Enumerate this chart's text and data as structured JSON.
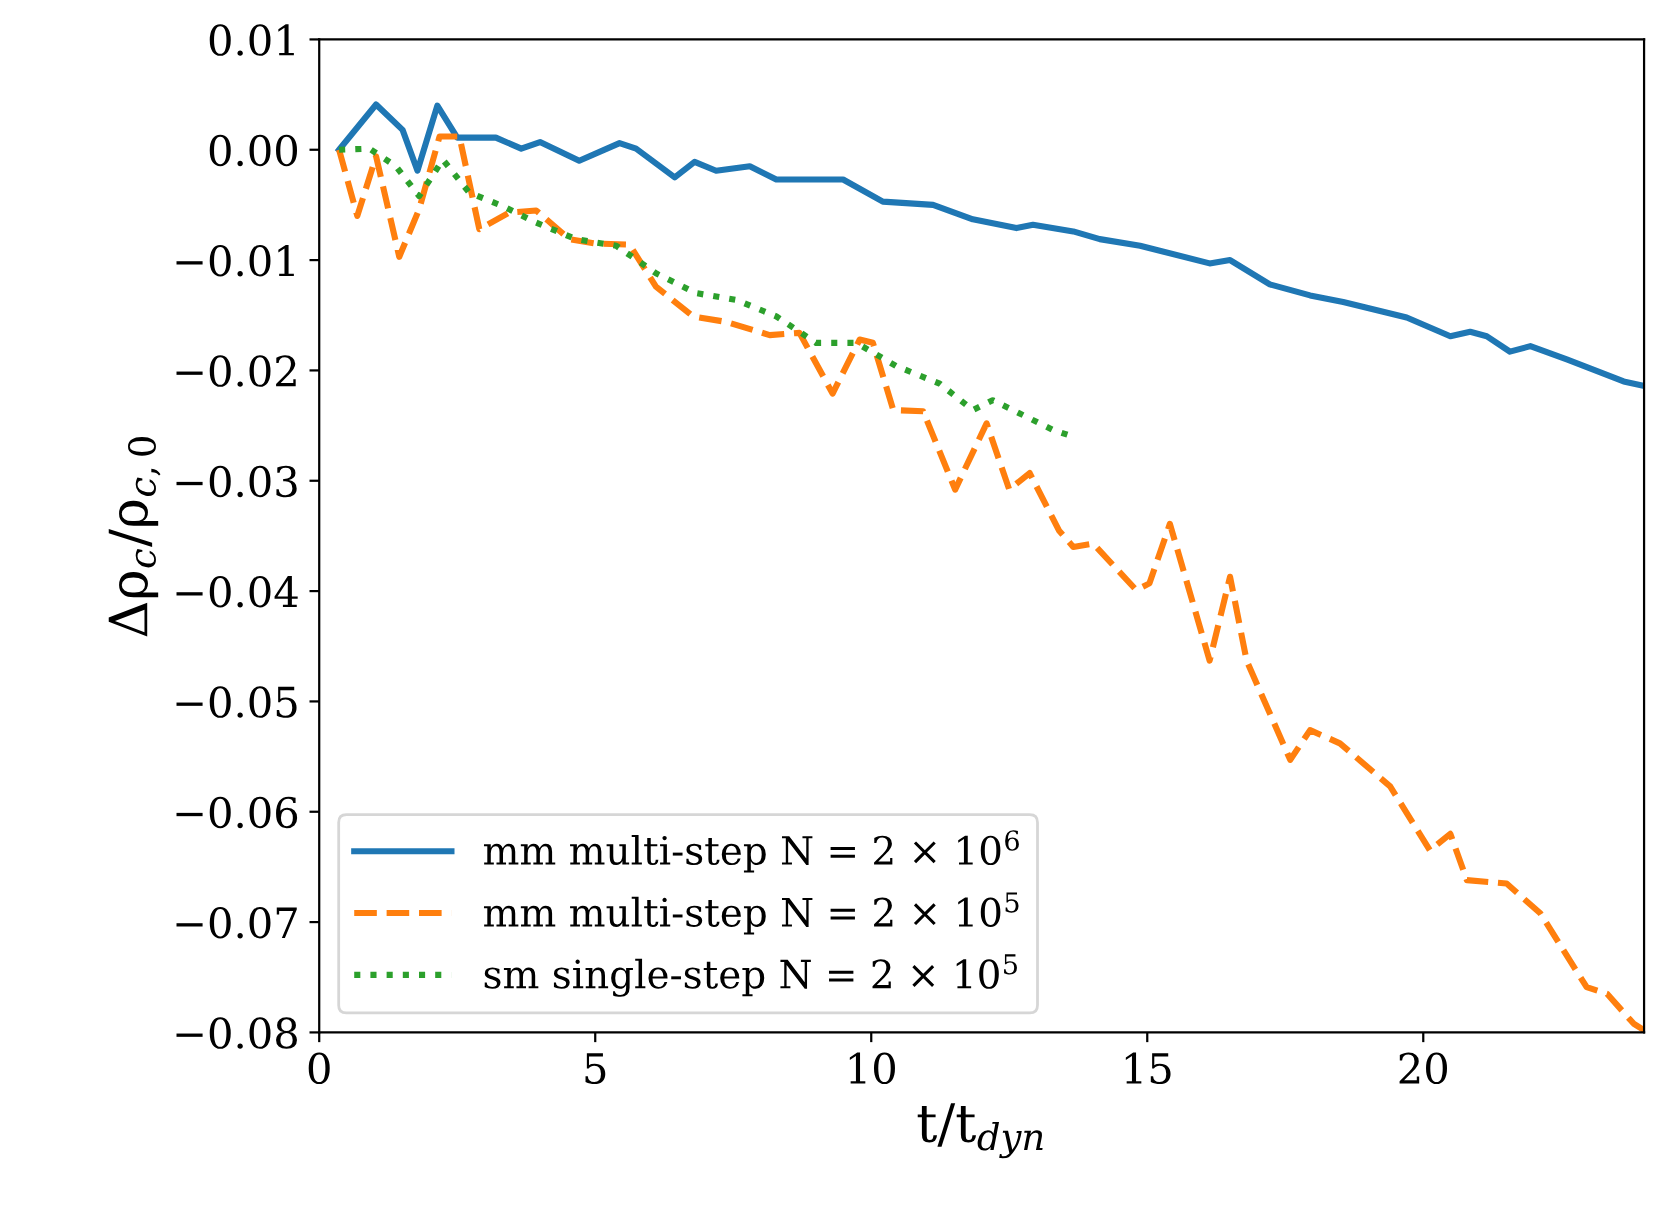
{
  "chart_data": {
    "type": "line",
    "xlabel": "t/t$_{dyn}$",
    "ylabel": "Δρ$_{c}$/ρ$_{c,0}$",
    "xlim": [
      0,
      24
    ],
    "xticks": [
      0,
      5,
      10,
      15,
      20
    ],
    "ylim": [
      -0.08,
      0.01
    ],
    "yticks": [
      {
        "value": 0.01,
        "label": "0.01"
      },
      {
        "value": 0.0,
        "label": "0.00"
      },
      {
        "value": -0.01,
        "label": "−0.01"
      },
      {
        "value": -0.02,
        "label": "−0.02"
      },
      {
        "value": -0.03,
        "label": "−0.03"
      },
      {
        "value": -0.04,
        "label": "−0.04"
      },
      {
        "value": -0.05,
        "label": "−0.05"
      },
      {
        "value": -0.06,
        "label": "−0.06"
      },
      {
        "value": -0.07,
        "label": "−0.07"
      },
      {
        "value": -0.08,
        "label": "−0.08"
      }
    ],
    "grid": false,
    "legend": "bottom left",
    "series": [
      {
        "name": "mm multi-step N = 2 × 10$^{6}$",
        "color": "#1f77b4",
        "line_style": "solid",
        "x": [
          0.36,
          1.03,
          1.51,
          1.78,
          2.14,
          2.5,
          3.2,
          3.66,
          4.0,
          4.71,
          5.44,
          5.74,
          6.44,
          6.8,
          7.19,
          7.8,
          8.28,
          9.49,
          10.21,
          11.12,
          11.84,
          12.63,
          12.93,
          13.66,
          14.14,
          14.87,
          16.13,
          16.5,
          17.22,
          17.95,
          18.55,
          19.7,
          20.49,
          20.85,
          21.15,
          21.57,
          21.94,
          22.6,
          23.63,
          24
        ],
        "values": [
          0.0,
          0.0041,
          0.0018,
          -0.0019,
          0.004,
          0.0011,
          0.0011,
          0.0001,
          0.0007,
          -0.001,
          0.0006,
          0.0001,
          -0.0025,
          -0.0011,
          -0.0019,
          -0.0015,
          -0.0027,
          -0.0027,
          -0.0047,
          -0.005,
          -0.0063,
          -0.0071,
          -0.0068,
          -0.0074,
          -0.0081,
          -0.0087,
          -0.0103,
          -0.01,
          -0.0122,
          -0.0132,
          -0.0138,
          -0.0152,
          -0.0169,
          -0.0165,
          -0.0169,
          -0.0183,
          -0.0178,
          -0.019,
          -0.021,
          -0.0214
        ]
      },
      {
        "name": "mm multi-step N = 2 × 10$^{5}$",
        "color": "#ff7f0e",
        "line_style": "dashed",
        "x": [
          0.36,
          0.69,
          1.03,
          1.45,
          1.81,
          2.18,
          2.54,
          2.9,
          3.44,
          3.93,
          4.53,
          5.01,
          5.62,
          6.1,
          6.77,
          7.37,
          8.16,
          8.7,
          9.3,
          9.79,
          10.03,
          10.4,
          10.94,
          11.52,
          12.09,
          12.5,
          12.87,
          13.4,
          13.66,
          14.02,
          14.8,
          15.04,
          15.41,
          16.13,
          16.5,
          16.8,
          17.59,
          17.95,
          18.49,
          19.4,
          20.12,
          20.49,
          20.79,
          21.51,
          22.12,
          22.96,
          23.33,
          23.81,
          24
        ],
        "values": [
          0.0,
          -0.006,
          -0.0006,
          -0.0097,
          -0.0054,
          0.0012,
          0.0012,
          -0.0072,
          -0.0057,
          -0.0055,
          -0.0081,
          -0.0085,
          -0.0086,
          -0.0124,
          -0.0151,
          -0.0156,
          -0.0168,
          -0.0166,
          -0.0221,
          -0.0172,
          -0.0175,
          -0.0236,
          -0.0237,
          -0.0308,
          -0.0248,
          -0.0308,
          -0.0293,
          -0.0345,
          -0.036,
          -0.0357,
          -0.0399,
          -0.0393,
          -0.0339,
          -0.0463,
          -0.0387,
          -0.0463,
          -0.0553,
          -0.0526,
          -0.0538,
          -0.0577,
          -0.0635,
          -0.062,
          -0.0662,
          -0.0665,
          -0.0692,
          -0.0759,
          -0.0765,
          -0.0792,
          -0.0798
        ]
      },
      {
        "name": "sm single-step N = 2 × 10$^{5}$",
        "color": "#2ca02c",
        "line_style": "dotted",
        "x": [
          0.36,
          0.91,
          1.39,
          1.81,
          2.24,
          2.72,
          3.32,
          3.93,
          4.65,
          5.38,
          6.1,
          6.83,
          7.55,
          8.28,
          9.0,
          9.73,
          10.45,
          11.24,
          11.84,
          12.2,
          12.69,
          13.29,
          13.66
        ],
        "values": [
          0.0,
          0.0001,
          -0.0015,
          -0.0042,
          -0.0009,
          -0.0039,
          -0.0051,
          -0.0066,
          -0.0081,
          -0.0087,
          -0.0112,
          -0.013,
          -0.0136,
          -0.0151,
          -0.0175,
          -0.0175,
          -0.0196,
          -0.0212,
          -0.0236,
          -0.0227,
          -0.0239,
          -0.0254,
          -0.026
        ]
      }
    ]
  }
}
